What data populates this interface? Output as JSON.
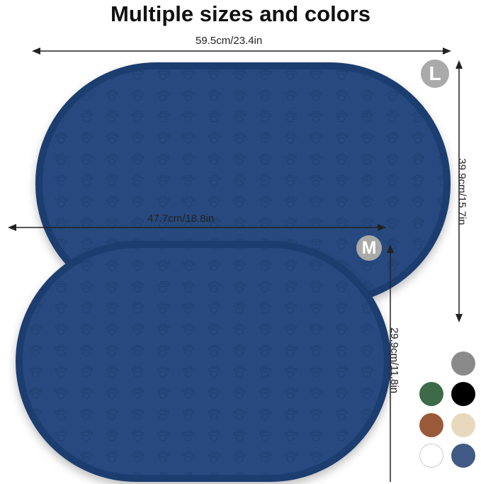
{
  "title": "Multiple sizes and colors",
  "sizes": {
    "large": {
      "badge": "L",
      "width_label": "59.5cm/23.4in",
      "height_label": "39.9cm/15.7in"
    },
    "medium": {
      "badge": "M",
      "width_label": "47.7cm/18.8in",
      "height_label": "29.9cm/11.8in"
    }
  },
  "mat_color": "#27497f",
  "mat_rim_color": "#1d3c70",
  "color_options": [
    {
      "name": "gray",
      "hex": "#8a8a8a"
    },
    {
      "name": "green",
      "hex": "#3d6a48"
    },
    {
      "name": "black",
      "hex": "#000000"
    },
    {
      "name": "brown",
      "hex": "#9a5a3a"
    },
    {
      "name": "beige",
      "hex": "#e8d9be"
    },
    {
      "name": "white",
      "hex": "#ffffff"
    },
    {
      "name": "blue",
      "hex": "#405a85"
    }
  ]
}
